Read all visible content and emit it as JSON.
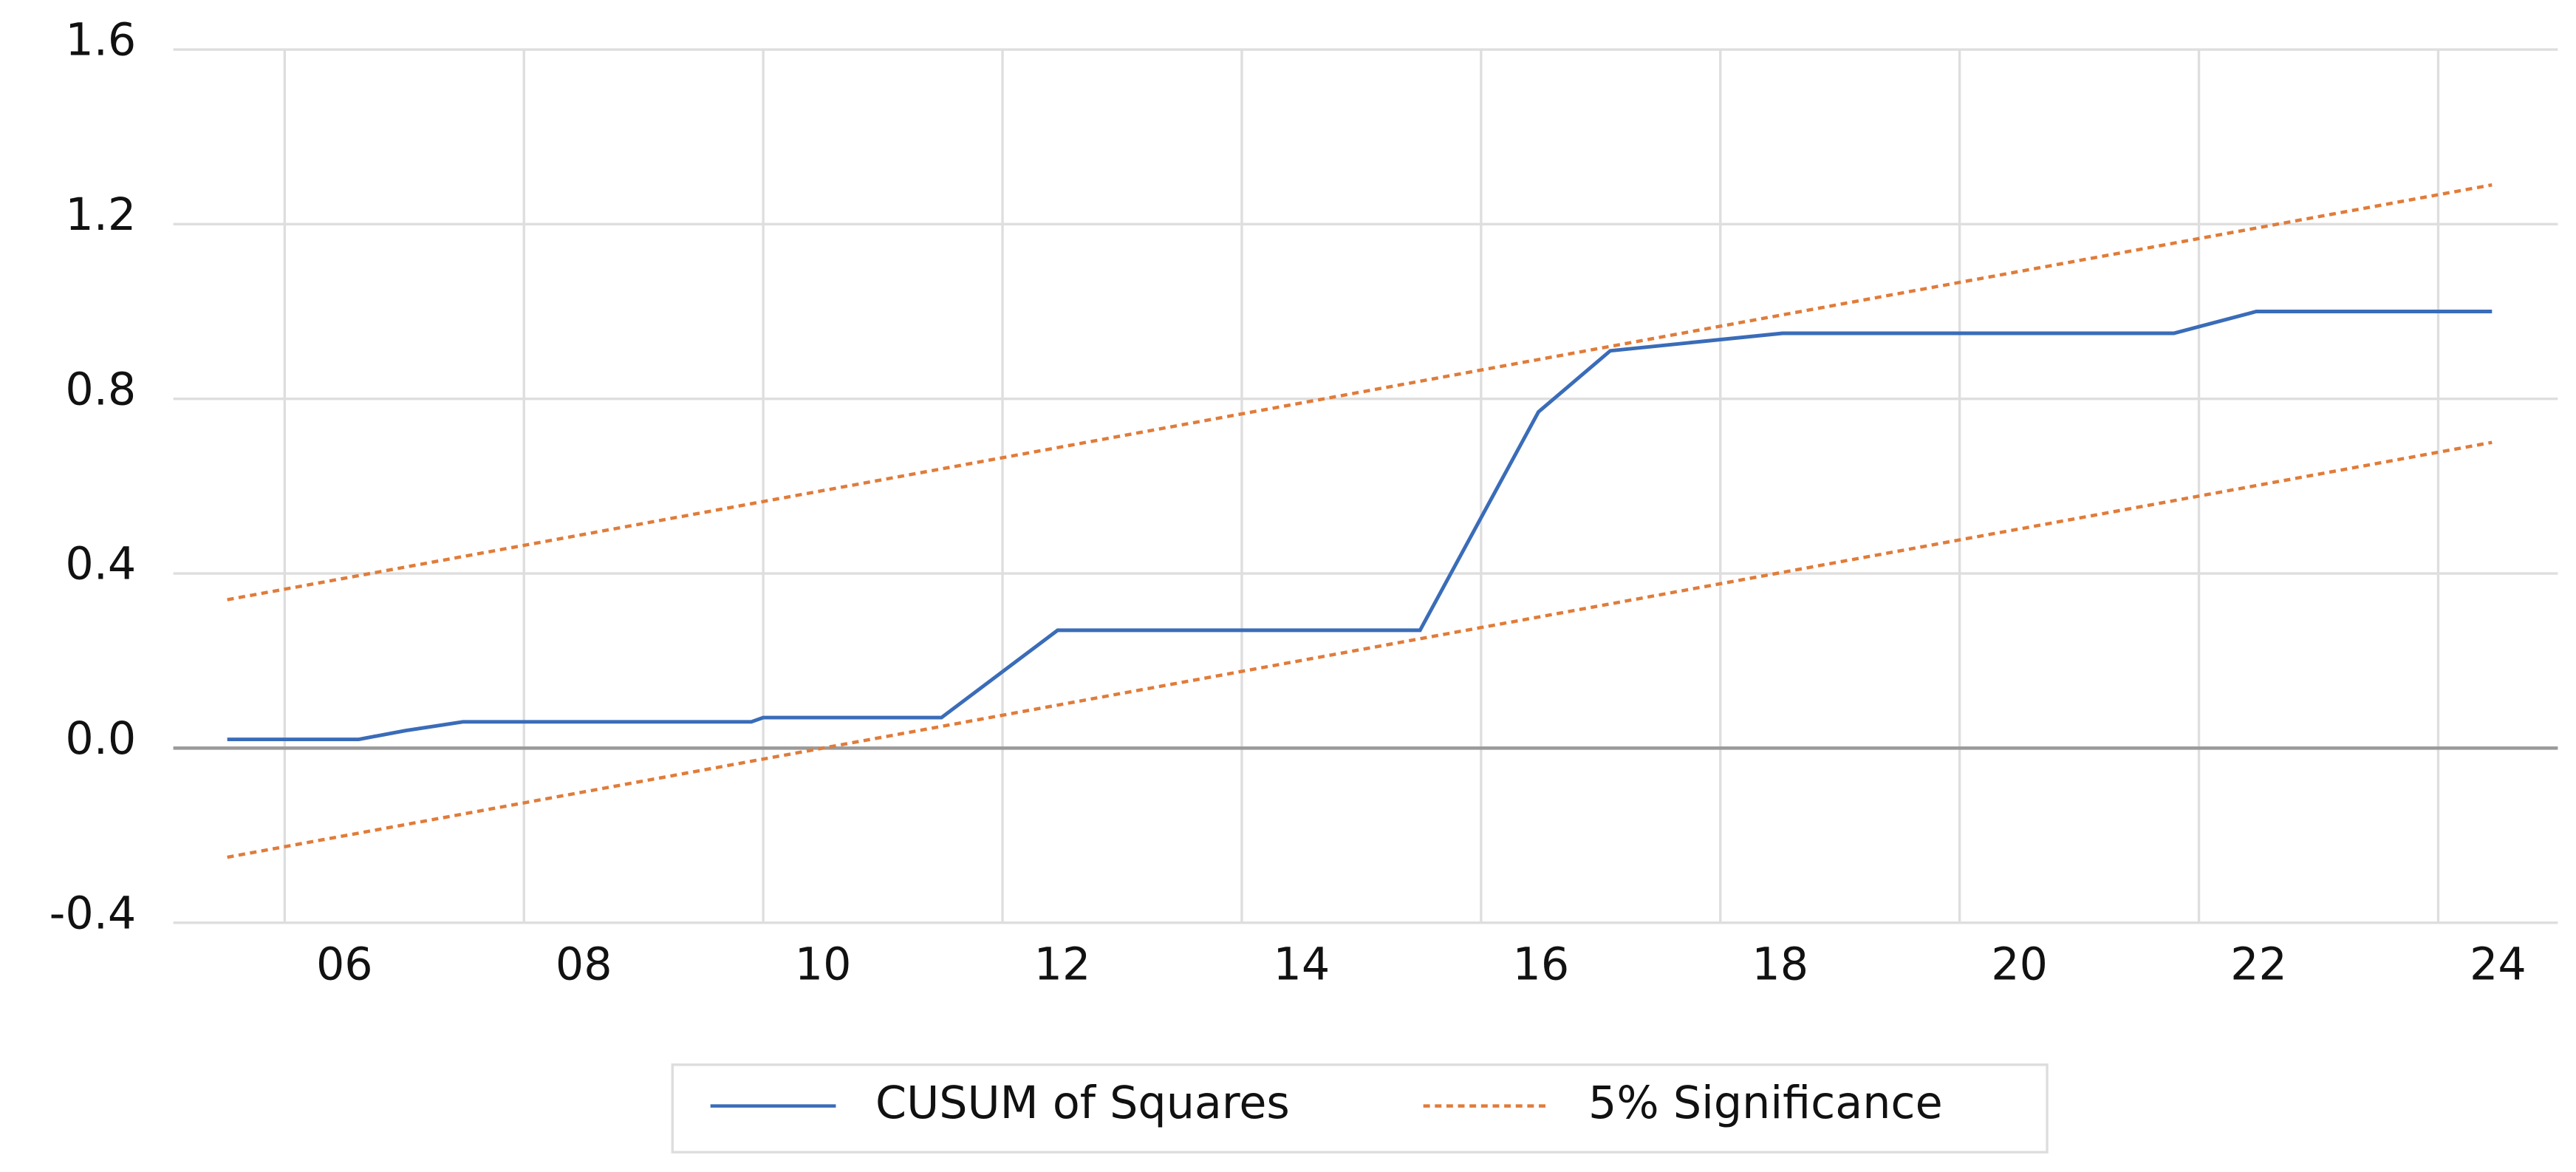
{
  "chart_data": {
    "type": "line",
    "xlim": [
      5,
      25
    ],
    "xticks": [
      {
        "value": 6,
        "label": "06"
      },
      {
        "value": 8,
        "label": "08"
      },
      {
        "value": 10,
        "label": "10"
      },
      {
        "value": 12,
        "label": "12"
      },
      {
        "value": 14,
        "label": "14"
      },
      {
        "value": 16,
        "label": "16"
      },
      {
        "value": 18,
        "label": "18"
      },
      {
        "value": 20,
        "label": "20"
      },
      {
        "value": 22,
        "label": "22"
      },
      {
        "value": 24,
        "label": "24"
      }
    ],
    "ylim": [
      -0.4,
      1.6
    ],
    "yticks": [
      {
        "value": -0.4,
        "label": "-0.4"
      },
      {
        "value": 0,
        "label": "0.0"
      },
      {
        "value": 0.4,
        "label": "0.4"
      },
      {
        "value": 0.8,
        "label": "0.8"
      },
      {
        "value": 1.2,
        "label": "1.2"
      },
      {
        "value": 1.6,
        "label": "1.6"
      }
    ],
    "grid": true,
    "legend": "bottom",
    "series": [
      {
        "name": "CUSUM of Squares",
        "color": "#3a6cb8",
        "dash": false,
        "x": [
          5.52,
          6.62,
          7.01,
          7.49,
          9.9,
          10.0,
          11.49,
          12.46,
          15.49,
          16.48,
          17.08,
          18.52,
          21.79,
          22.48,
          24.45
        ],
        "values": [
          0.02,
          0.02,
          0.04,
          0.06,
          0.06,
          0.07,
          0.07,
          0.27,
          0.27,
          0.77,
          0.91,
          0.95,
          0.95,
          1.0,
          1.0
        ]
      },
      {
        "name": "5% Significance",
        "color": "#e07c3a",
        "dash": true,
        "x": [
          5.52,
          24.45
        ],
        "values": [
          0.34,
          1.29
        ]
      },
      {
        "color": "#e07c3a",
        "dash": true,
        "x": [
          5.52,
          24.45
        ],
        "values": [
          -0.25,
          0.7
        ]
      }
    ]
  }
}
